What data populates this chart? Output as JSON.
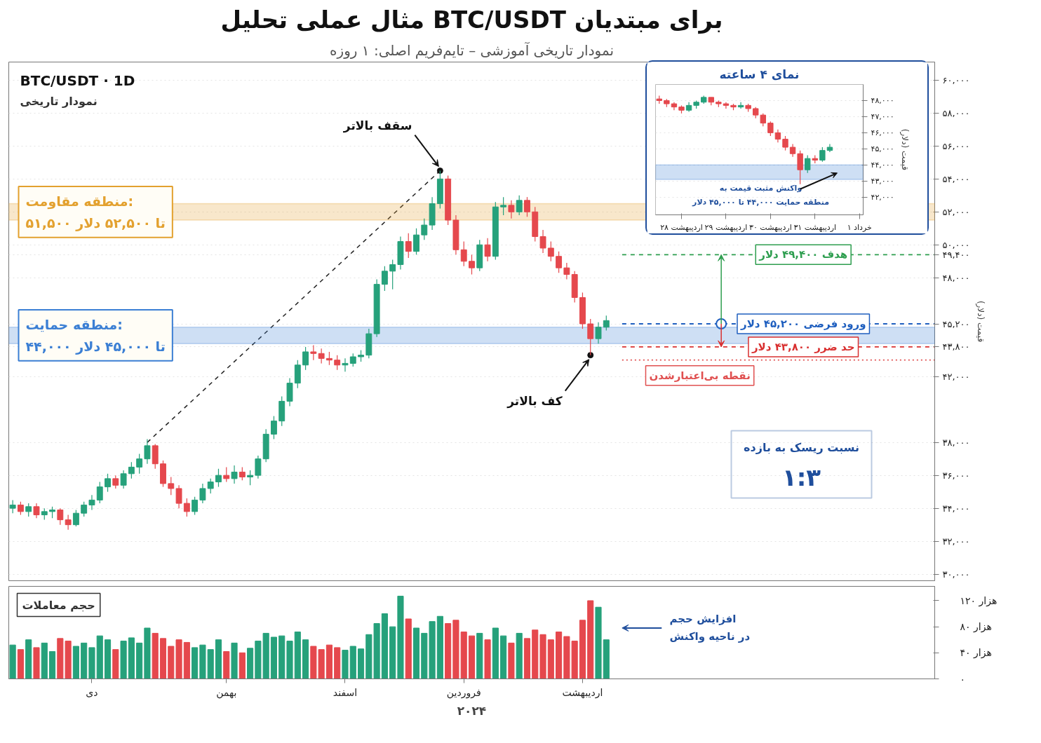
{
  "chart_data": [
    {
      "type": "candlestick",
      "title": "مثال عملی تحلیل BTC/USDT برای مبتدیان",
      "subtitle": "نمودار تاریخی آموزشی – تایم‌فریم اصلی: ۱ روزه",
      "ylabel": "قیمت (دلار)",
      "categories": [
        null,
        null,
        null,
        null,
        null,
        null,
        null,
        null,
        null,
        null,
        null,
        null,
        null,
        null,
        null,
        null,
        null,
        null,
        null,
        null,
        null,
        null,
        null,
        null,
        null,
        null,
        null,
        null,
        null,
        null,
        null,
        null,
        null,
        null,
        null,
        null,
        null,
        null,
        null,
        null,
        null,
        null,
        null,
        null,
        null,
        null,
        null,
        null,
        null,
        null,
        null,
        null,
        null,
        null,
        null,
        null,
        null,
        null,
        null,
        null,
        null,
        null,
        null,
        null,
        null,
        null,
        null,
        null,
        null,
        null,
        null,
        null,
        null,
        null,
        null,
        null,
        null,
        null,
        null,
        null,
        null,
        null,
        null,
        null,
        null,
        null,
        null,
        null,
        null,
        null,
        null,
        null,
        null,
        null,
        null,
        null,
        null,
        null,
        null,
        null,
        null,
        null,
        null,
        null,
        null,
        null,
        null,
        null,
        null,
        null,
        null,
        null,
        null,
        null,
        null,
        null,
        null
      ],
      "ohlc": [
        [
          34000,
          34500,
          33700,
          34200
        ],
        [
          34200,
          34400,
          33600,
          33800
        ],
        [
          33800,
          34300,
          33500,
          34100
        ],
        [
          34100,
          34300,
          33400,
          33600
        ],
        [
          33600,
          34000,
          33300,
          33800
        ],
        [
          33800,
          34100,
          33400,
          33900
        ],
        [
          33900,
          34000,
          33000,
          33300
        ],
        [
          33300,
          33600,
          32700,
          33000
        ],
        [
          33000,
          33900,
          32900,
          33700
        ],
        [
          33700,
          34400,
          33500,
          34200
        ],
        [
          34200,
          34800,
          33900,
          34500
        ],
        [
          34500,
          35600,
          34300,
          35300
        ],
        [
          35300,
          36100,
          35000,
          35800
        ],
        [
          35800,
          36000,
          35200,
          35400
        ],
        [
          35400,
          36300,
          35200,
          36100
        ],
        [
          36100,
          36800,
          35800,
          36500
        ],
        [
          36500,
          37300,
          36100,
          37000
        ],
        [
          37000,
          38200,
          36700,
          37800
        ],
        [
          37800,
          37900,
          36400,
          36700
        ],
        [
          36700,
          36900,
          35300,
          35500
        ],
        [
          35500,
          35900,
          34800,
          35200
        ],
        [
          35200,
          35400,
          34000,
          34300
        ],
        [
          34300,
          34600,
          33500,
          33800
        ],
        [
          33800,
          34700,
          33600,
          34500
        ],
        [
          34500,
          35500,
          34300,
          35200
        ],
        [
          35200,
          35800,
          34900,
          35600
        ],
        [
          35600,
          36400,
          35300,
          36000
        ],
        [
          36000,
          36500,
          35600,
          35800
        ],
        [
          35800,
          36600,
          35500,
          36200
        ],
        [
          36200,
          36500,
          35700,
          35900
        ],
        [
          35900,
          36300,
          35400,
          36000
        ],
        [
          36000,
          37200,
          35800,
          37000
        ],
        [
          37000,
          38800,
          36800,
          38500
        ],
        [
          38500,
          39600,
          38200,
          39300
        ],
        [
          39300,
          40800,
          39000,
          40500
        ],
        [
          40500,
          41900,
          40200,
          41600
        ],
        [
          41600,
          43000,
          41300,
          42700
        ],
        [
          42700,
          43800,
          42400,
          43500
        ],
        [
          43500,
          43900,
          43000,
          43400
        ],
        [
          43400,
          43700,
          42800,
          43100
        ],
        [
          43100,
          43500,
          42700,
          43000
        ],
        [
          43000,
          43300,
          42400,
          42700
        ],
        [
          42700,
          43100,
          42300,
          42800
        ],
        [
          42800,
          43400,
          42600,
          43200
        ],
        [
          43200,
          43600,
          42900,
          43300
        ],
        [
          43300,
          44900,
          43100,
          44600
        ],
        [
          44600,
          47900,
          44400,
          47600
        ],
        [
          47600,
          48700,
          47200,
          48400
        ],
        [
          48400,
          49100,
          47300,
          48800
        ],
        [
          48800,
          50500,
          48500,
          50200
        ],
        [
          50200,
          50700,
          49200,
          49600
        ],
        [
          49600,
          51000,
          49400,
          50600
        ],
        [
          50600,
          51600,
          50300,
          51200
        ],
        [
          51200,
          52900,
          50900,
          52500
        ],
        [
          52500,
          54500,
          52200,
          54000
        ],
        [
          54000,
          54200,
          51200,
          51500
        ],
        [
          51500,
          51800,
          49400,
          49700
        ],
        [
          49700,
          50200,
          48700,
          49000
        ],
        [
          49000,
          49400,
          48200,
          48600
        ],
        [
          48600,
          50300,
          48400,
          50000
        ],
        [
          50000,
          50400,
          49000,
          49300
        ],
        [
          49300,
          52600,
          49100,
          52300
        ],
        [
          52300,
          52900,
          51800,
          52400
        ],
        [
          52400,
          52700,
          51600,
          52000
        ],
        [
          52000,
          53000,
          51800,
          52700
        ],
        [
          52700,
          52900,
          51700,
          52000
        ],
        [
          52000,
          52300,
          50200,
          50500
        ],
        [
          50500,
          50900,
          49500,
          49800
        ],
        [
          49800,
          50200,
          49000,
          49300
        ],
        [
          49300,
          49600,
          48300,
          48600
        ],
        [
          48600,
          48900,
          47900,
          48200
        ],
        [
          48200,
          48400,
          46500,
          46800
        ],
        [
          46800,
          47100,
          44900,
          45200
        ],
        [
          45200,
          45500,
          43300,
          44300
        ],
        [
          44300,
          45300,
          44000,
          45000
        ],
        [
          45000,
          45700,
          44800,
          45400
        ],
        null,
        null,
        null,
        null,
        null,
        null,
        null,
        null,
        null,
        null,
        null,
        null,
        null,
        null,
        null,
        null,
        null,
        null,
        null,
        null,
        null,
        null,
        null,
        null,
        null,
        null,
        null,
        null,
        null,
        null,
        null,
        null,
        null,
        null,
        null,
        null,
        null,
        null,
        null,
        null,
        null
      ],
      "colors": [
        "#26a17b",
        "#e5484d",
        "#26a17b",
        "#e5484d",
        "#26a17b",
        "#26a17b",
        "#e5484d",
        "#e5484d",
        "#26a17b",
        "#26a17b",
        "#26a17b",
        "#26a17b",
        "#26a17b",
        "#e5484d",
        "#26a17b",
        "#26a17b",
        "#26a17b",
        "#26a17b",
        "#e5484d",
        "#e5484d",
        "#e5484d",
        "#e5484d",
        "#e5484d",
        "#26a17b",
        "#26a17b",
        "#26a17b",
        "#26a17b",
        "#e5484d",
        "#26a17b",
        "#e5484d",
        "#26a17b",
        "#26a17b",
        "#26a17b",
        "#26a17b",
        "#26a17b",
        "#26a17b",
        "#26a17b",
        "#26a17b",
        "#e5484d",
        "#e5484d",
        "#e5484d",
        "#e5484d",
        "#26a17b",
        "#26a17b",
        "#26a17b",
        "#26a17b",
        "#26a17b",
        "#26a17b",
        "#26a17b",
        "#26a17b",
        "#e5484d",
        "#26a17b",
        "#26a17b",
        "#26a17b",
        "#26a17b",
        "#e5484d",
        "#e5484d",
        "#e5484d",
        "#e5484d",
        "#26a17b",
        "#e5484d",
        "#26a17b",
        "#26a17b",
        "#e5484d",
        "#26a17b",
        "#e5484d",
        "#e5484d",
        "#e5484d",
        "#e5484d",
        "#e5484d",
        "#e5484d",
        "#e5484d",
        "#e5484d",
        "#e5484d",
        "#26a17b",
        "#26a17b",
        null,
        null,
        null,
        null,
        null,
        null,
        null,
        null,
        null,
        null,
        null,
        null,
        null,
        null,
        null,
        null,
        null,
        null,
        null,
        null,
        null,
        null,
        null,
        null,
        null,
        null,
        null,
        null,
        null,
        null,
        null,
        null,
        null,
        null,
        null,
        null,
        null,
        null,
        null,
        null,
        null
      ],
      "ylim": [
        29600,
        61100
      ],
      "yticks": [
        {
          "value": 30000,
          "label": "۳۰,۰۰۰"
        },
        {
          "value": 32000,
          "label": "۳۲,۰۰۰"
        },
        {
          "value": 34000,
          "label": "۳۴,۰۰۰"
        },
        {
          "value": 36000,
          "label": "۳۶,۰۰۰"
        },
        {
          "value": 38000,
          "label": "۳۸,۰۰۰"
        },
        {
          "value": 42000,
          "label": "۴۲,۰۰۰"
        },
        {
          "value": 43800,
          "label": "۴۳,۸۰۰"
        },
        {
          "value": 45200,
          "label": "۴۵,۲۰۰"
        },
        {
          "value": 48000,
          "label": "۴۸,۰۰۰"
        },
        {
          "value": 49400,
          "label": "۴۹,۴۰۰"
        },
        {
          "value": 50000,
          "label": "۵۰,۰۰۰"
        },
        {
          "value": 52000,
          "label": "۵۲,۰۰۰"
        },
        {
          "value": 54000,
          "label": "۵۴,۰۰۰"
        },
        {
          "value": 56000,
          "label": "۵۶,۰۰۰"
        },
        {
          "value": 58000,
          "label": "۵۸,۰۰۰"
        },
        {
          "value": 60000,
          "label": "۶۰,۰۰۰"
        }
      ],
      "tick_labels": "y",
      "grid": "y",
      "series": [
        {
          "type": "line",
          "color": "#222222",
          "line_style": "dashed",
          "values": [
            null,
            null,
            null,
            null,
            null,
            null,
            null,
            null,
            null,
            null,
            null,
            null,
            null,
            null,
            null,
            null,
            null,
            38000,
            null,
            null,
            null,
            null,
            null,
            null,
            null,
            null,
            null,
            null,
            null,
            null,
            null,
            null,
            null,
            null,
            null,
            null,
            null,
            null,
            null,
            null,
            null,
            null,
            null,
            null,
            null,
            null,
            null,
            null,
            null,
            null,
            null,
            null,
            null,
            null,
            54500,
            null,
            null,
            null,
            null,
            null,
            null,
            null,
            null,
            null,
            null,
            null,
            null,
            null,
            null,
            null,
            null,
            null,
            null,
            null,
            null,
            null,
            null,
            null,
            null,
            null,
            null,
            null,
            null,
            null,
            null,
            null,
            null,
            null,
            null,
            null,
            null,
            null,
            null,
            null,
            null,
            null,
            null,
            null,
            null,
            null,
            null,
            null,
            null,
            null,
            null,
            null,
            null,
            null,
            null,
            null,
            null,
            null,
            null,
            null,
            null,
            null,
            null
          ]
        }
      ],
      "bands": [
        {
          "axis": "y",
          "from": 51500,
          "to": 52500,
          "label": "منطقه مقاومت:\n۵۱,۵۰۰ تا ۵۲,۵۰۰ دلار",
          "color": "#e3a12f"
        },
        {
          "axis": "y",
          "from": 44000,
          "to": 45000,
          "label": "منطقه حمایت:\n۴۴,۰۰۰ تا ۴۵,۰۰۰ دلار",
          "color": "#3b7fd4"
        }
      ],
      "ref_lines": [
        {
          "axis": "y",
          "value": 49400,
          "label": "هدف ۴۹,۴۰۰ دلار",
          "color": "#2e9e4f",
          "line_style": "dashed"
        },
        {
          "axis": "y",
          "value": 45200,
          "label": "ورود فرضی ۴۵,۲۰۰ دلار",
          "color": "#1f5fbf",
          "line_style": "dashed"
        },
        {
          "axis": "y",
          "value": 43800,
          "label": "حد ضرر ۴۳,۸۰۰ دلار",
          "color": "#d93030",
          "line_style": "dashed"
        },
        {
          "axis": "y",
          "value": 43000,
          "label": "نقطه بی‌اعتبارشدن",
          "color": "#e05050",
          "line_style": "dotted"
        }
      ],
      "annotations": [
        "BTC/USDT · 1D",
        "نمودار تاریخی",
        "نسبت ریسک به بازده",
        "۱:۳",
        "سقف بالاتر",
        "کف بالاتر"
      ]
    },
    {
      "type": "bar",
      "title": "حجم معاملات",
      "xlabel": "۲۰۲۴",
      "categories": [
        null,
        null,
        null,
        null,
        null,
        null,
        null,
        null,
        null,
        null,
        "دی",
        null,
        null,
        null,
        null,
        null,
        null,
        null,
        null,
        null,
        null,
        null,
        null,
        null,
        null,
        null,
        null,
        "بهمن",
        null,
        null,
        null,
        null,
        null,
        null,
        null,
        null,
        null,
        null,
        null,
        null,
        null,
        null,
        "اسفند",
        null,
        null,
        null,
        null,
        null,
        null,
        null,
        null,
        null,
        null,
        null,
        null,
        null,
        null,
        "فروردین",
        null,
        null,
        null,
        null,
        null,
        null,
        null,
        null,
        null,
        null,
        null,
        null,
        null,
        null,
        "اردیبهشت",
        null,
        null,
        null,
        null,
        null,
        null,
        null,
        null,
        null,
        null,
        null,
        null,
        null,
        null,
        null,
        null,
        null,
        null,
        null,
        null,
        null,
        null,
        null,
        null,
        null,
        null,
        null,
        null,
        null,
        null,
        null,
        null,
        null,
        null,
        null,
        null,
        null,
        null,
        null,
        null,
        null,
        null,
        null,
        null
      ],
      "values": [
        52,
        45,
        60,
        48,
        55,
        42,
        62,
        58,
        50,
        55,
        48,
        66,
        60,
        45,
        58,
        63,
        55,
        78,
        70,
        62,
        50,
        60,
        56,
        48,
        52,
        45,
        60,
        42,
        55,
        40,
        47,
        58,
        70,
        64,
        66,
        58,
        72,
        60,
        50,
        45,
        52,
        48,
        44,
        50,
        46,
        68,
        85,
        100,
        80,
        127,
        92,
        78,
        70,
        88,
        96,
        85,
        90,
        72,
        66,
        70,
        60,
        78,
        66,
        55,
        70,
        62,
        75,
        68,
        60,
        72,
        65,
        58,
        90,
        120,
        110,
        60,
        null,
        null,
        null,
        null,
        null,
        null,
        null,
        null,
        null,
        null,
        null,
        null,
        null,
        null,
        null,
        null,
        null,
        null,
        null,
        null,
        null,
        null,
        null,
        null,
        null,
        null,
        null,
        null,
        null,
        null,
        null,
        null,
        null,
        null,
        null,
        null,
        null,
        null,
        null,
        null,
        null
      ],
      "colors": [
        "#26a17b",
        "#e5484d",
        "#26a17b",
        "#e5484d",
        "#26a17b",
        "#26a17b",
        "#e5484d",
        "#e5484d",
        "#26a17b",
        "#26a17b",
        "#26a17b",
        "#26a17b",
        "#26a17b",
        "#e5484d",
        "#26a17b",
        "#26a17b",
        "#26a17b",
        "#26a17b",
        "#e5484d",
        "#e5484d",
        "#e5484d",
        "#e5484d",
        "#e5484d",
        "#26a17b",
        "#26a17b",
        "#26a17b",
        "#26a17b",
        "#e5484d",
        "#26a17b",
        "#e5484d",
        "#26a17b",
        "#26a17b",
        "#26a17b",
        "#26a17b",
        "#26a17b",
        "#26a17b",
        "#26a17b",
        "#26a17b",
        "#e5484d",
        "#e5484d",
        "#e5484d",
        "#e5484d",
        "#26a17b",
        "#26a17b",
        "#26a17b",
        "#26a17b",
        "#26a17b",
        "#26a17b",
        "#26a17b",
        "#26a17b",
        "#e5484d",
        "#26a17b",
        "#26a17b",
        "#26a17b",
        "#26a17b",
        "#e5484d",
        "#e5484d",
        "#e5484d",
        "#e5484d",
        "#26a17b",
        "#e5484d",
        "#26a17b",
        "#26a17b",
        "#e5484d",
        "#26a17b",
        "#e5484d",
        "#e5484d",
        "#e5484d",
        "#e5484d",
        "#e5484d",
        "#e5484d",
        "#e5484d",
        "#e5484d",
        "#e5484d",
        "#26a17b",
        "#26a17b",
        null,
        null,
        null,
        null,
        null,
        null,
        null,
        null,
        null,
        null,
        null,
        null,
        null,
        null,
        null,
        null,
        null,
        null,
        null,
        null,
        null,
        null,
        null,
        null,
        null,
        null,
        null,
        null,
        null,
        null,
        null,
        null,
        null,
        null,
        null,
        null,
        null,
        null,
        null,
        null,
        null
      ],
      "ylim": [
        0,
        142
      ],
      "yticks": [
        {
          "value": 0,
          "label": "۰"
        },
        {
          "value": 40,
          "label": "۴۰ هزار"
        },
        {
          "value": 80,
          "label": "۸۰ هزار"
        },
        {
          "value": 120,
          "label": "۱۲۰ هزار"
        }
      ],
      "annotations": [
        "افزایش حجم\nدر ناحیه واکنش"
      ]
    },
    {
      "type": "candlestick",
      "title": "نمای ۴ ساعته",
      "ylabel": "قیمت (دلار)",
      "categories": [
        null,
        null,
        null,
        "۲۸ اردیبهشت",
        null,
        null,
        null,
        null,
        null,
        "۲۹ اردیبهشت",
        null,
        null,
        null,
        null,
        null,
        "۳۰ اردیبهشت",
        null,
        null,
        null,
        null,
        null,
        "۳۱ اردیبهشت",
        null,
        null,
        null,
        null,
        null,
        "۱ خرداد"
      ],
      "ohlc": [
        [
          48100,
          48300,
          47800,
          48000
        ],
        [
          48000,
          48100,
          47600,
          47800
        ],
        [
          47800,
          47900,
          47400,
          47600
        ],
        [
          47600,
          47700,
          47200,
          47400
        ],
        [
          47400,
          47900,
          47300,
          47700
        ],
        [
          47700,
          48000,
          47500,
          47900
        ],
        [
          47900,
          48300,
          47800,
          48200
        ],
        [
          48200,
          48200,
          47700,
          47900
        ],
        [
          47900,
          48000,
          47600,
          47800
        ],
        [
          47800,
          47900,
          47500,
          47700
        ],
        [
          47700,
          47800,
          47400,
          47600
        ],
        [
          47600,
          47900,
          47500,
          47700
        ],
        [
          47700,
          47800,
          47300,
          47500
        ],
        [
          47500,
          47600,
          46900,
          47100
        ],
        [
          47100,
          47200,
          46400,
          46600
        ],
        [
          46600,
          46700,
          45800,
          46000
        ],
        [
          46000,
          46200,
          45400,
          45600
        ],
        [
          45600,
          45800,
          44900,
          45100
        ],
        [
          45100,
          45300,
          44500,
          44700
        ],
        [
          44700,
          44900,
          42800,
          43700
        ],
        [
          43700,
          44600,
          43500,
          44400
        ],
        [
          44400,
          44600,
          44100,
          44300
        ],
        [
          44300,
          45100,
          44200,
          44900
        ],
        [
          44900,
          45300,
          44800,
          45100
        ],
        null,
        null,
        null,
        null
      ],
      "colors": [
        "#e5484d",
        "#e5484d",
        "#e5484d",
        "#e5484d",
        "#26a17b",
        "#26a17b",
        "#26a17b",
        "#e5484d",
        "#e5484d",
        "#e5484d",
        "#e5484d",
        "#26a17b",
        "#e5484d",
        "#e5484d",
        "#e5484d",
        "#e5484d",
        "#e5484d",
        "#e5484d",
        "#e5484d",
        "#e5484d",
        "#26a17b",
        "#e5484d",
        "#26a17b",
        "#26a17b",
        null,
        null,
        null,
        null
      ],
      "ylim": [
        40900,
        49000
      ],
      "yticks": [
        {
          "value": 42000,
          "label": "۴۲,۰۰۰"
        },
        {
          "value": 43000,
          "label": "۴۳,۰۰۰"
        },
        {
          "value": 44000,
          "label": "۴۴,۰۰۰"
        },
        {
          "value": 45000,
          "label": "۴۵,۰۰۰"
        },
        {
          "value": 46000,
          "label": "۴۶,۰۰۰"
        },
        {
          "value": 47000,
          "label": "۴۷,۰۰۰"
        },
        {
          "value": 48000,
          "label": "۴۸,۰۰۰"
        }
      ],
      "grid": "y",
      "bands": [
        {
          "axis": "y",
          "from": 43100,
          "to": 44000,
          "color": "#3b7fd4"
        }
      ],
      "annotations": [
        "واکنش مثبت قیمت به\nمنطقه حمایت ۴۴,۰۰۰ تا ۴۵,۰۰۰ دلار"
      ]
    }
  ]
}
